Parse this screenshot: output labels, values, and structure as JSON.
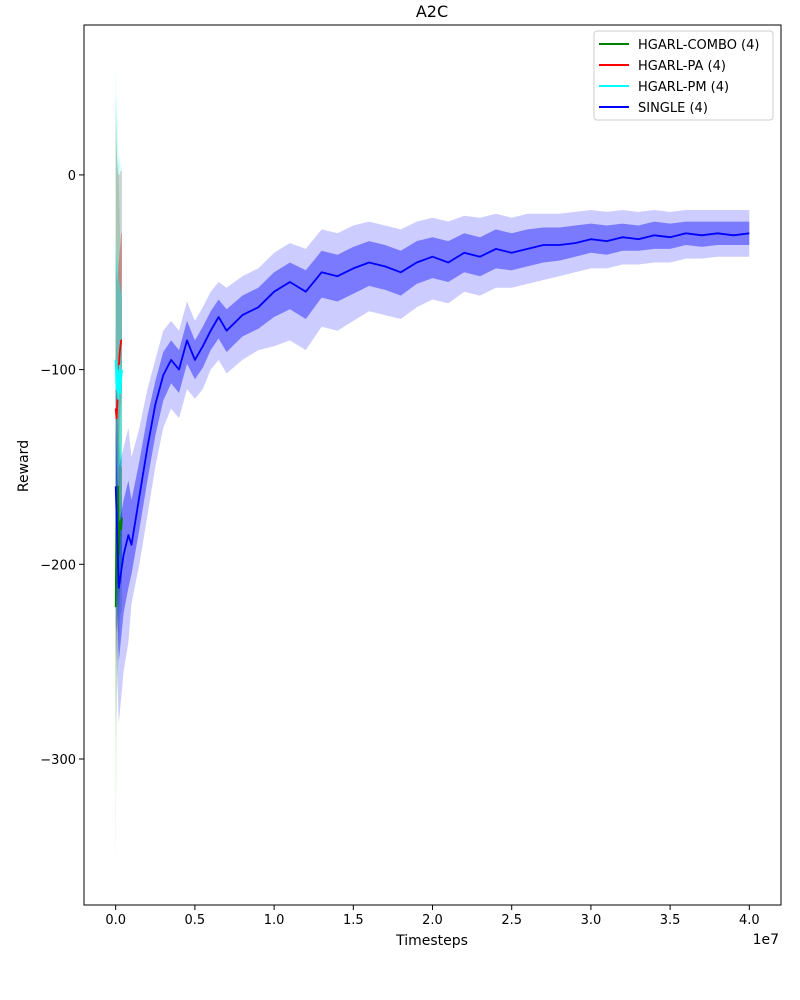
{
  "chart_data": {
    "type": "line",
    "title": "A2C",
    "xlabel": "Timesteps",
    "ylabel": "Reward",
    "x_offset_label": "1e7",
    "xlim": [
      -0.2,
      4.2
    ],
    "ylim": [
      -375,
      77
    ],
    "x_ticks": [
      0.0,
      0.5,
      1.0,
      1.5,
      2.0,
      2.5,
      3.0,
      3.5,
      4.0
    ],
    "x_tick_labels": [
      "0.0",
      "0.5",
      "1.0",
      "1.5",
      "2.0",
      "2.5",
      "3.0",
      "3.5",
      "4.0"
    ],
    "y_ticks": [
      0,
      -100,
      -200,
      -300
    ],
    "y_tick_labels": [
      "0",
      "−100",
      "−200",
      "−300"
    ],
    "legend_position": "top-right",
    "series": [
      {
        "name": "HGARL-COMBO (4)",
        "color": "#008000",
        "x": [
          0.0,
          0.005,
          0.01,
          0.015,
          0.02,
          0.025,
          0.03,
          0.035,
          0.04
        ],
        "y": [
          -222,
          -170,
          -190,
          -160,
          -195,
          -180,
          -178,
          -182,
          -176
        ],
        "outer_low": [
          -355,
          -280,
          -260,
          -240,
          -250,
          -230,
          -225,
          -225,
          -220
        ],
        "outer_high": [
          40,
          20,
          0,
          10,
          -5,
          -20,
          -40,
          -60,
          -80
        ],
        "inner_low": [
          -290,
          -230,
          -235,
          -210,
          -230,
          -215,
          -210,
          -210,
          -205
        ],
        "inner_high": [
          -80,
          -100,
          -120,
          -110,
          -130,
          -140,
          -145,
          -150,
          -150
        ]
      },
      {
        "name": "HGARL-PA (4)",
        "color": "#ff0000",
        "x": [
          0.0,
          0.005,
          0.01,
          0.015,
          0.02,
          0.025,
          0.03,
          0.035,
          0.04
        ],
        "y": [
          -120,
          -125,
          -118,
          -110,
          -100,
          -92,
          -88,
          -85,
          -85
        ],
        "outer_low": [
          -250,
          -230,
          -210,
          -195,
          -180,
          -160,
          -150,
          -140,
          -135
        ],
        "outer_high": [
          30,
          15,
          5,
          0,
          0,
          0,
          2,
          2,
          2
        ],
        "inner_low": [
          -180,
          -170,
          -160,
          -150,
          -140,
          -130,
          -120,
          -115,
          -110
        ],
        "inner_high": [
          -40,
          -50,
          -55,
          -50,
          -45,
          -40,
          -35,
          -30,
          -30
        ]
      },
      {
        "name": "HGARL-PM (4)",
        "color": "#00ffff",
        "x": [
          0.0,
          0.005,
          0.01,
          0.015,
          0.02,
          0.025,
          0.03,
          0.035,
          0.04
        ],
        "y": [
          -95,
          -110,
          -100,
          -115,
          -105,
          -98,
          -112,
          -105,
          -100
        ],
        "outer_low": [
          -230,
          -230,
          -220,
          -215,
          -205,
          -200,
          -205,
          -200,
          -195
        ],
        "outer_high": [
          55,
          40,
          30,
          15,
          5,
          10,
          5,
          0,
          10
        ],
        "inner_low": [
          -170,
          -165,
          -160,
          -160,
          -155,
          -150,
          -150,
          -150,
          -145
        ],
        "inner_high": [
          -30,
          -40,
          -45,
          -50,
          -55,
          -55,
          -60,
          -60,
          -55
        ]
      },
      {
        "name": "SINGLE (4)",
        "color": "#0000ff",
        "x": [
          0.0,
          0.02,
          0.05,
          0.08,
          0.1,
          0.15,
          0.2,
          0.25,
          0.3,
          0.35,
          0.4,
          0.45,
          0.5,
          0.55,
          0.6,
          0.65,
          0.7,
          0.8,
          0.9,
          1.0,
          1.1,
          1.2,
          1.3,
          1.4,
          1.5,
          1.6,
          1.7,
          1.8,
          1.9,
          2.0,
          2.1,
          2.2,
          2.3,
          2.4,
          2.5,
          2.6,
          2.7,
          2.8,
          2.9,
          3.0,
          3.1,
          3.2,
          3.3,
          3.4,
          3.5,
          3.6,
          3.7,
          3.8,
          3.9,
          4.0
        ],
        "y": [
          -160,
          -212,
          -195,
          -185,
          -190,
          -165,
          -140,
          -118,
          -103,
          -95,
          -100,
          -85,
          -95,
          -88,
          -80,
          -73,
          -80,
          -72,
          -68,
          -60,
          -55,
          -60,
          -50,
          -52,
          -48,
          -45,
          -47,
          -50,
          -45,
          -42,
          -45,
          -40,
          -42,
          -38,
          -40,
          -38,
          -36,
          -36,
          -35,
          -33,
          -34,
          -32,
          -33,
          -31,
          -32,
          -30,
          -31,
          -30,
          -31,
          -30
        ],
        "outer_low": [
          -230,
          -282,
          -255,
          -240,
          -220,
          -200,
          -175,
          -150,
          -130,
          -120,
          -125,
          -110,
          -115,
          -110,
          -100,
          -95,
          -102,
          -95,
          -90,
          -88,
          -85,
          -90,
          -78,
          -80,
          -75,
          -70,
          -72,
          -74,
          -68,
          -64,
          -66,
          -60,
          -62,
          -58,
          -58,
          -56,
          -54,
          -52,
          -50,
          -48,
          -48,
          -46,
          -46,
          -45,
          -45,
          -43,
          -43,
          -42,
          -42,
          -42
        ],
        "outer_high": [
          -100,
          -150,
          -140,
          -130,
          -145,
          -130,
          -110,
          -95,
          -80,
          -75,
          -80,
          -65,
          -75,
          -68,
          -60,
          -55,
          -58,
          -52,
          -48,
          -40,
          -35,
          -38,
          -28,
          -30,
          -26,
          -24,
          -26,
          -28,
          -24,
          -22,
          -24,
          -21,
          -22,
          -20,
          -22,
          -20,
          -20,
          -20,
          -19,
          -18,
          -19,
          -18,
          -19,
          -18,
          -19,
          -18,
          -18,
          -18,
          -18,
          -18
        ],
        "inner_low": [
          -195,
          -250,
          -225,
          -212,
          -205,
          -182,
          -157,
          -134,
          -116,
          -107,
          -112,
          -97,
          -105,
          -99,
          -90,
          -84,
          -91,
          -83,
          -79,
          -73,
          -69,
          -74,
          -63,
          -65,
          -61,
          -57,
          -59,
          -62,
          -56,
          -53,
          -55,
          -50,
          -52,
          -48,
          -49,
          -47,
          -45,
          -44,
          -42,
          -40,
          -41,
          -39,
          -39,
          -38,
          -38,
          -36,
          -37,
          -36,
          -36,
          -36
        ],
        "inner_high": [
          -130,
          -180,
          -167,
          -157,
          -167,
          -147,
          -124,
          -106,
          -91,
          -85,
          -90,
          -75,
          -85,
          -78,
          -70,
          -64,
          -69,
          -62,
          -58,
          -50,
          -45,
          -49,
          -39,
          -41,
          -37,
          -34,
          -36,
          -39,
          -34,
          -32,
          -34,
          -30,
          -32,
          -28,
          -30,
          -28,
          -27,
          -27,
          -26,
          -25,
          -26,
          -25,
          -26,
          -24,
          -25,
          -24,
          -24,
          -24,
          -24,
          -24
        ]
      }
    ]
  }
}
